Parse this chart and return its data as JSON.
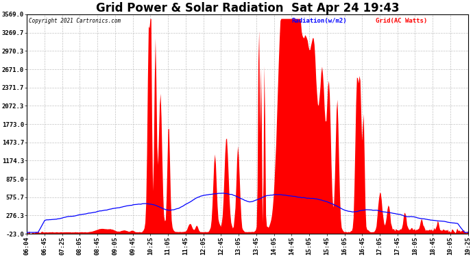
{
  "title": "Grid Power & Solar Radiation  Sat Apr 24 19:43",
  "copyright": "Copyright 2021 Cartronics.com",
  "legend_radiation": "Radiation(w/m2)",
  "legend_grid": "Grid(AC Watts)",
  "ymin": -23.0,
  "ymax": 3569.0,
  "yticks": [
    -23.0,
    276.3,
    575.7,
    875.0,
    1174.3,
    1473.7,
    1773.0,
    2072.3,
    2371.7,
    2671.0,
    2970.3,
    3269.7,
    3569.0
  ],
  "background_color": "#ffffff",
  "plot_bg_color": "#ffffff",
  "grid_color": "#bbbbbb",
  "radiation_color": "#0000ff",
  "grid_ac_color": "#ff0000",
  "title_fontsize": 12,
  "tick_fontsize": 6.5,
  "copyright_color": "#000000",
  "xtick_labels": [
    "06:04",
    "06:45",
    "07:25",
    "08:05",
    "08:45",
    "09:05",
    "09:45",
    "10:25",
    "11:05",
    "11:45",
    "12:05",
    "12:45",
    "13:05",
    "13:45",
    "14:05",
    "14:45",
    "15:05",
    "15:45",
    "16:05",
    "16:45",
    "17:05",
    "17:45",
    "18:05",
    "18:45",
    "19:05",
    "19:25"
  ],
  "n_points": 520
}
